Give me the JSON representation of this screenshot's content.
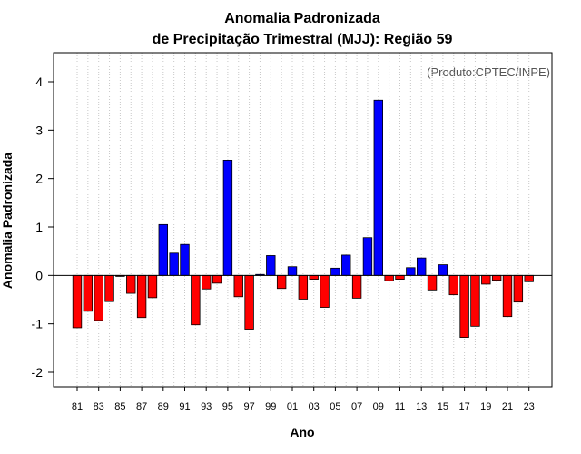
{
  "chart_data": {
    "type": "bar",
    "title_line1": "Anomalia Padronizada",
    "title_line2": "de Precipitação Trimestral (MJJ): Região 59",
    "xlabel": "Ano",
    "ylabel": "Anomalia Padronizada",
    "credit": "(Produto:CPTEC/INPE)",
    "ylim": [
      -2.3,
      4.6
    ],
    "yticks": [
      -2,
      -1,
      0,
      1,
      2,
      3,
      4
    ],
    "grid": "vertical dotted",
    "positive_color": "#0000ff",
    "negative_color": "#ff0000",
    "categories": [
      "81",
      "82",
      "83",
      "84",
      "85",
      "86",
      "87",
      "88",
      "89",
      "90",
      "91",
      "92",
      "93",
      "94",
      "95",
      "96",
      "97",
      "98",
      "99",
      "00",
      "01",
      "02",
      "03",
      "04",
      "05",
      "06",
      "07",
      "08",
      "09",
      "10",
      "11",
      "12",
      "13",
      "14",
      "15",
      "16",
      "17",
      "18",
      "19",
      "20",
      "21",
      "22",
      "23"
    ],
    "xtick_labels": [
      "81",
      "83",
      "85",
      "87",
      "89",
      "91",
      "93",
      "95",
      "97",
      "99",
      "01",
      "03",
      "05",
      "07",
      "09",
      "11",
      "13",
      "15",
      "17",
      "19",
      "21",
      "23"
    ],
    "values": [
      -1.08,
      -0.74,
      -0.93,
      -0.54,
      -0.02,
      -0.37,
      -0.87,
      -0.46,
      1.05,
      0.46,
      0.64,
      -1.02,
      -0.28,
      -0.16,
      2.38,
      -0.44,
      -1.11,
      0.02,
      0.41,
      -0.27,
      0.18,
      -0.49,
      -0.08,
      -0.66,
      0.15,
      0.42,
      -0.47,
      0.78,
      3.62,
      -0.11,
      -0.08,
      0.16,
      0.36,
      -0.3,
      0.22,
      -0.4,
      -1.28,
      -1.05,
      -0.18,
      -0.1,
      -0.85,
      -0.55,
      -0.13
    ]
  }
}
